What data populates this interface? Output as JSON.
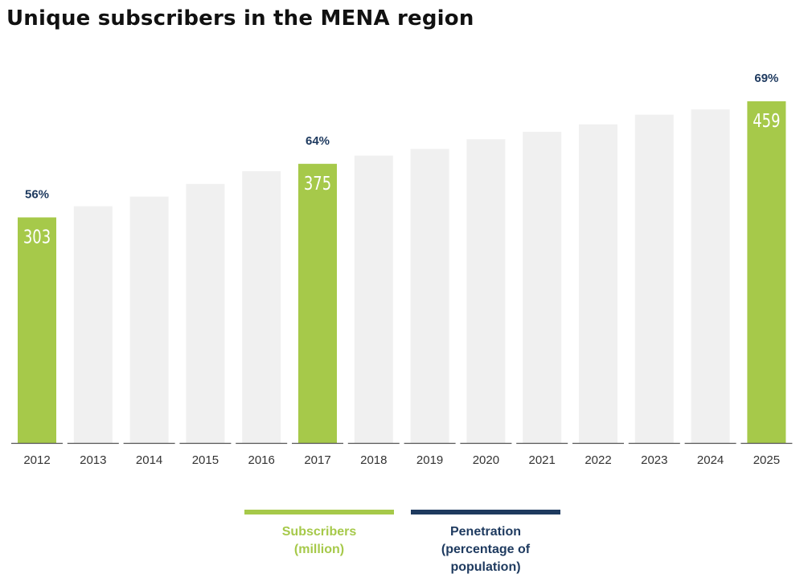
{
  "chart_data": {
    "type": "bar",
    "title": "Unique subscribers in the MENA region",
    "categories": [
      "2012",
      "2013",
      "2014",
      "2015",
      "2016",
      "2017",
      "2018",
      "2019",
      "2020",
      "2021",
      "2022",
      "2023",
      "2024",
      "2025"
    ],
    "series": [
      {
        "name": "Subscribers (million)",
        "values": [
          303,
          318,
          331,
          348,
          365,
          375,
          386,
          395,
          408,
          418,
          428,
          441,
          448,
          459
        ],
        "labeled_values": [
          "303",
          "",
          "",
          "",
          "",
          "375",
          "",
          "",
          "",
          "",
          "",
          "",
          "",
          "459"
        ],
        "highlight": [
          true,
          false,
          false,
          false,
          false,
          true,
          false,
          false,
          false,
          false,
          false,
          false,
          false,
          true
        ]
      },
      {
        "name": "Penetration (percentage of population)",
        "labels": [
          "56%",
          "",
          "",
          "",
          "",
          "64%",
          "",
          "",
          "",
          "",
          "",
          "",
          "",
          "69%"
        ]
      }
    ],
    "ylim": [
      0,
      480
    ],
    "grid": false,
    "legend_position": "bottom-center"
  },
  "legend": {
    "subscribers": "Subscribers\n(million)",
    "penetration": "Penetration\n(percentage of\npopulation)"
  },
  "colors": {
    "highlight_bar": "#a6c94a",
    "muted_bar": "#f0f0f0",
    "penetration_text": "#1e3a5f",
    "baseline": "#555555",
    "tick_text": "#333333",
    "bar_value_text": "#ffffff"
  }
}
